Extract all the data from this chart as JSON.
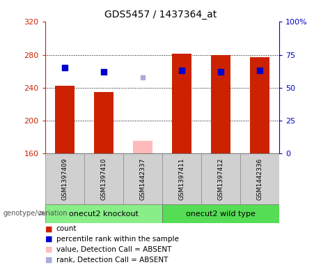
{
  "title": "GDS5457 / 1437364_at",
  "samples": [
    "GSM1397409",
    "GSM1397410",
    "GSM1442337",
    "GSM1397411",
    "GSM1397412",
    "GSM1442336"
  ],
  "bar_values": [
    242,
    235,
    null,
    281,
    280,
    277
  ],
  "absent_bar_value": 175,
  "absent_bar_index": 2,
  "dot_pct_values": [
    65,
    62,
    null,
    63,
    62,
    63
  ],
  "absent_dot_pct": 58,
  "absent_dot_index": 2,
  "ylim_left": [
    160,
    320
  ],
  "ylim_right": [
    0,
    100
  ],
  "yticks_left": [
    160,
    200,
    240,
    280,
    320
  ],
  "yticks_right": [
    0,
    25,
    50,
    75,
    100
  ],
  "ytick_labels_left": [
    "160",
    "200",
    "240",
    "280",
    "320"
  ],
  "ytick_labels_right": [
    "0",
    "25",
    "50",
    "75",
    "100%"
  ],
  "bar_bottom": 160,
  "bar_width": 0.5,
  "dot_size": 30,
  "absent_dot_size": 25,
  "left_axis_color": "#cc2200",
  "right_axis_color": "#0000cc",
  "bar_color": "#cc2200",
  "dot_color": "#0000cc",
  "absent_bar_color": "#ffbbbb",
  "absent_dot_color": "#aaaadd",
  "grid_color": "#000000",
  "sample_box_color": "#d0d0d0",
  "group1_color": "#88ee88",
  "group2_color": "#55dd55",
  "group1_label": "onecut2 knockout",
  "group2_label": "onecut2 wild type",
  "xlabel_label": "genotype/variation",
  "title_fontsize": 10,
  "tick_fontsize": 8,
  "sample_fontsize": 6.5,
  "group_fontsize": 8,
  "legend_fontsize": 7.5,
  "legend_items": [
    {
      "label": "count",
      "color": "#cc2200"
    },
    {
      "label": "percentile rank within the sample",
      "color": "#0000cc"
    },
    {
      "label": "value, Detection Call = ABSENT",
      "color": "#ffbbbb"
    },
    {
      "label": "rank, Detection Call = ABSENT",
      "color": "#aaaadd"
    }
  ]
}
